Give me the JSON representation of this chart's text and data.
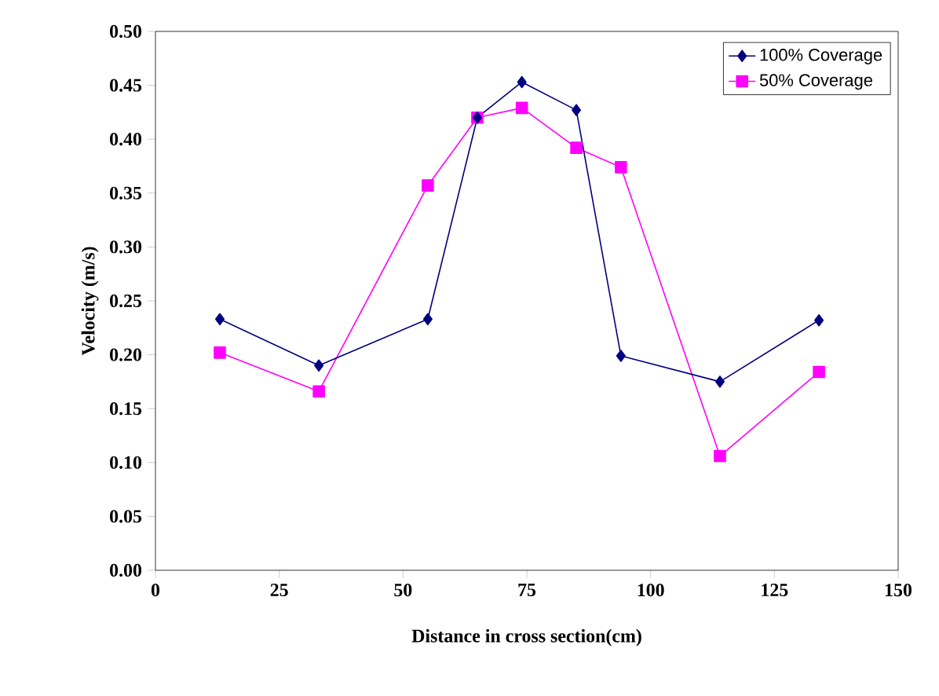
{
  "chart_data": {
    "type": "line",
    "xlabel": "Distance in cross section(cm)",
    "ylabel": "Velocity (m/s)",
    "x": [
      13,
      33,
      55,
      65,
      74,
      85,
      94,
      114,
      134
    ],
    "series": [
      {
        "name": "100% Coverage",
        "color": "#000080",
        "marker": "diamond",
        "values": [
          0.233,
          0.19,
          0.233,
          0.42,
          0.453,
          0.427,
          0.199,
          0.175,
          0.232
        ]
      },
      {
        "name": "50% Coverage",
        "color": "#ff00ff",
        "marker": "square",
        "values": [
          0.202,
          0.166,
          0.357,
          0.42,
          0.429,
          0.392,
          0.374,
          0.106,
          0.184
        ]
      }
    ],
    "xlim": [
      0,
      150
    ],
    "xticks": [
      0,
      25,
      50,
      75,
      100,
      125,
      150
    ],
    "ylim": [
      0,
      0.5
    ],
    "yticks": [
      {
        "value": 0,
        "label": "0.00"
      },
      {
        "value": 0.05,
        "label": "0.05"
      },
      {
        "value": 0.1,
        "label": "0.10"
      },
      {
        "value": 0.15,
        "label": "0.15"
      },
      {
        "value": 0.2,
        "label": "0.20"
      },
      {
        "value": 0.25,
        "label": "0.25"
      },
      {
        "value": 0.3,
        "label": "0.30"
      },
      {
        "value": 0.35,
        "label": "0.35"
      },
      {
        "value": 0.4,
        "label": "0.40"
      },
      {
        "value": 0.45,
        "label": "0.45"
      },
      {
        "value": 0.5,
        "label": "0.50"
      }
    ],
    "grid": false,
    "legend": "top right",
    "line_style": "solid"
  }
}
